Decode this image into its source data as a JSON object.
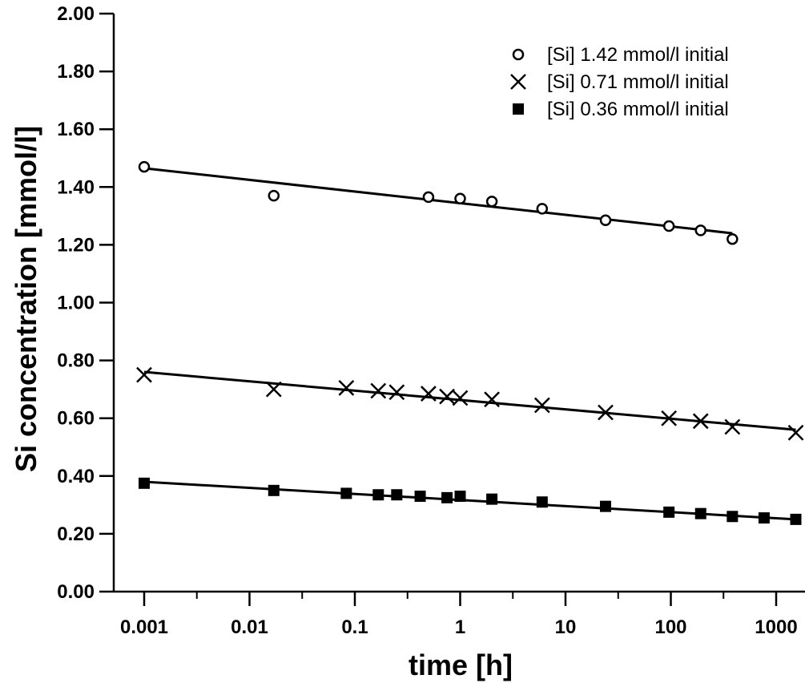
{
  "chart_data": {
    "type": "scatter",
    "xlabel": "time [h]",
    "ylabel": "Si concentration [mmol/l]",
    "xscale": "log",
    "xlim": [
      0.00045,
      1600
    ],
    "ylim": [
      0,
      2.0
    ],
    "x_ticks": [
      0.001,
      0.01,
      0.1,
      1,
      10,
      100,
      1000
    ],
    "x_tick_labels": [
      "0.001",
      "0.01",
      "0.1",
      "1",
      "10",
      "100",
      "1000"
    ],
    "y_ticks": [
      0,
      0.2,
      0.4,
      0.6,
      0.8,
      1.0,
      1.2,
      1.4,
      1.6,
      1.8,
      2.0
    ],
    "y_tick_labels": [
      "0.00",
      "0.20",
      "0.40",
      "0.60",
      "0.80",
      "1.00",
      "1.20",
      "1.40",
      "1.60",
      "1.80",
      "2.00"
    ],
    "grid": false,
    "legend_position": "top-right",
    "series": [
      {
        "name": "[Si] 1.42 mmol/l initial",
        "marker": "circle-open",
        "x": [
          0.001,
          0.017,
          0.5,
          1,
          2,
          6,
          24,
          96,
          192,
          384
        ],
        "y": [
          1.47,
          1.37,
          1.365,
          1.36,
          1.35,
          1.325,
          1.285,
          1.265,
          1.25,
          1.22
        ],
        "fit": {
          "x": [
            0.001,
            384
          ],
          "y": [
            1.465,
            1.24
          ]
        }
      },
      {
        "name": "[Si] 0.71 mmol/l initial",
        "marker": "x",
        "x": [
          0.001,
          0.017,
          0.083,
          0.167,
          0.25,
          0.5,
          0.75,
          1,
          2,
          6,
          24,
          96,
          192,
          384,
          1536
        ],
        "y": [
          0.75,
          0.7,
          0.705,
          0.695,
          0.69,
          0.685,
          0.675,
          0.67,
          0.665,
          0.645,
          0.62,
          0.6,
          0.59,
          0.57,
          0.55
        ],
        "fit": {
          "x": [
            0.001,
            1536
          ],
          "y": [
            0.76,
            0.56
          ]
        }
      },
      {
        "name": "[Si] 0.36 mmol/l initial",
        "marker": "square-filled",
        "x": [
          0.001,
          0.017,
          0.083,
          0.167,
          0.25,
          0.417,
          0.75,
          1,
          2,
          6,
          24,
          96,
          192,
          384,
          768,
          1536
        ],
        "y": [
          0.375,
          0.35,
          0.34,
          0.335,
          0.335,
          0.33,
          0.325,
          0.33,
          0.32,
          0.31,
          0.295,
          0.275,
          0.27,
          0.26,
          0.255,
          0.25
        ],
        "fit": {
          "x": [
            0.001,
            1536
          ],
          "y": [
            0.38,
            0.25
          ]
        }
      }
    ]
  }
}
